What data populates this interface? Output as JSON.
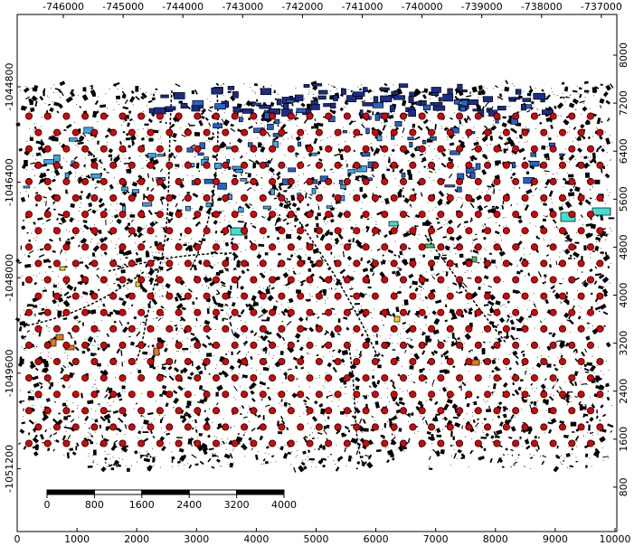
{
  "map": {
    "top_axis_labels": [
      "-746000",
      "-745000",
      "-744000",
      "-743000",
      "-742000",
      "-741000",
      "-740000",
      "-739000",
      "-738000",
      "-737000"
    ],
    "left_axis_labels": [
      "-1044800",
      "-1046400",
      "-1048000",
      "-1049600",
      "-1051200"
    ],
    "bottom_axis_labels": [
      "0",
      "1000",
      "2000",
      "3000",
      "4000",
      "5000",
      "6000",
      "7000",
      "8000",
      "9000",
      "10000"
    ],
    "right_axis_labels": [
      "8000",
      "7200",
      "6400",
      "5600",
      "4800",
      "4000",
      "3200",
      "2400",
      "1600",
      "800"
    ],
    "scale_bar": {
      "labels": [
        "0",
        "800",
        "1600",
        "2400",
        "3200",
        "4000"
      ]
    },
    "colors": {
      "points": "#e00000",
      "building_outline": "#000000",
      "tall_buildings": "#1a2d8c",
      "medium_buildings": "#2563c9",
      "low_buildings": "#3ea6e8",
      "park": "#40e0d0",
      "industrial": "#e07a20",
      "special": "#f0d020",
      "green": "#40c060"
    }
  }
}
